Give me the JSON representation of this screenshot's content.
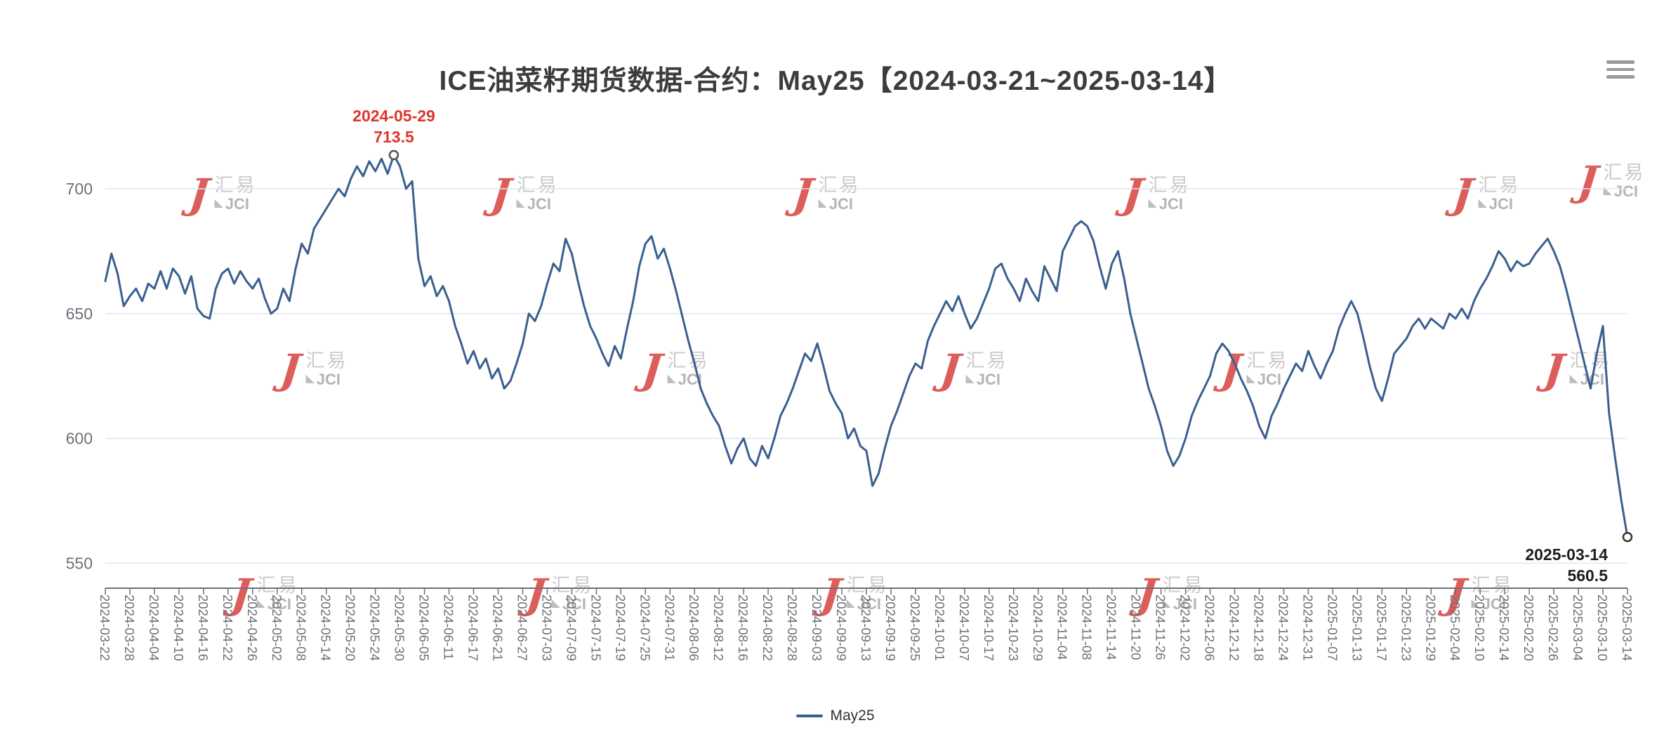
{
  "title": "ICE油菜籽期货数据-合约：May25【2024-03-21~2025-03-14】",
  "legend": {
    "items": [
      {
        "label": "May25",
        "color": "#3a5f8f"
      }
    ]
  },
  "watermark": {
    "logo_glyph": "J",
    "cn": "汇易",
    "en": "JCI"
  },
  "annotations": {
    "max": {
      "date": "2024-05-29",
      "value": "713.5"
    },
    "last": {
      "date": "2025-03-14",
      "value": "560.5"
    }
  },
  "colors": {
    "line": "#3a5f8f",
    "grid": "#e0e6f1",
    "axis": "#6e7079",
    "axis_label": "#6e7079",
    "max_annotation": "#e0352b",
    "last_annotation": "#1d1d1d",
    "watermark_red": "#d6433f",
    "watermark_gray": "#c2c2c2"
  },
  "chart_data": {
    "type": "line",
    "title": "ICE油菜籽期货数据-合约：May25【2024-03-21~2025-03-14】",
    "ylim": [
      540,
      725
    ],
    "yticks": [
      550,
      600,
      650,
      700
    ],
    "grid": true,
    "legend_position": "bottom",
    "points_per_label": 4,
    "x_tick_labels": [
      "2024-03-22",
      "2024-03-28",
      "2024-04-04",
      "2024-04-10",
      "2024-04-16",
      "2024-04-22",
      "2024-04-26",
      "2024-05-02",
      "2024-05-08",
      "2024-05-14",
      "2024-05-20",
      "2024-05-24",
      "2024-05-30",
      "2024-06-05",
      "2024-06-11",
      "2024-06-17",
      "2024-06-21",
      "2024-06-27",
      "2024-07-03",
      "2024-07-09",
      "2024-07-15",
      "2024-07-19",
      "2024-07-25",
      "2024-07-31",
      "2024-08-06",
      "2024-08-12",
      "2024-08-16",
      "2024-08-22",
      "2024-08-28",
      "2024-09-03",
      "2024-09-09",
      "2024-09-13",
      "2024-09-19",
      "2024-09-25",
      "2024-10-01",
      "2024-10-07",
      "2024-10-17",
      "2024-10-23",
      "2024-10-29",
      "2024-11-04",
      "2024-11-08",
      "2024-11-14",
      "2024-11-20",
      "2024-11-26",
      "2024-12-02",
      "2024-12-06",
      "2024-12-12",
      "2024-12-18",
      "2024-12-24",
      "2024-12-31",
      "2025-01-07",
      "2025-01-13",
      "2025-01-17",
      "2025-01-23",
      "2025-01-29",
      "2025-02-04",
      "2025-02-10",
      "2025-02-14",
      "2025-02-20",
      "2025-02-26",
      "2025-03-04",
      "2025-03-10",
      "2025-03-14"
    ],
    "series": [
      {
        "name": "May25",
        "color": "#3a5f8f",
        "values": [
          663,
          674,
          666,
          653,
          657,
          660,
          655,
          662,
          660,
          667,
          660,
          668,
          665,
          658,
          665,
          652,
          649,
          648,
          660,
          666,
          668,
          662,
          667,
          663,
          660,
          664,
          656,
          650,
          652,
          660,
          655,
          668,
          678,
          674,
          684,
          688,
          692,
          696,
          700,
          697,
          704,
          709,
          705,
          711,
          707,
          712,
          706,
          713.5,
          709,
          700,
          703,
          672,
          661,
          665,
          657,
          661,
          655,
          645,
          638,
          630,
          635,
          628,
          632,
          624,
          628,
          620,
          623,
          630,
          638,
          650,
          647,
          653,
          662,
          670,
          667,
          680,
          674,
          663,
          653,
          645,
          640,
          634,
          629,
          637,
          632,
          644,
          655,
          669,
          678,
          681,
          672,
          676,
          668,
          659,
          649,
          639,
          630,
          620,
          614,
          609,
          605,
          597,
          590,
          596,
          600,
          592,
          589,
          597,
          592,
          600,
          609,
          614,
          620,
          627,
          634,
          631,
          638,
          629,
          619,
          614,
          610,
          600,
          604,
          597,
          595,
          581,
          586,
          596,
          605,
          611,
          618,
          625,
          630,
          628,
          639,
          645,
          650,
          655,
          651,
          657,
          650,
          644,
          648,
          654,
          660,
          668,
          670,
          664,
          660,
          655,
          664,
          659,
          655,
          669,
          664,
          659,
          675,
          680,
          685,
          687,
          685,
          679,
          669,
          660,
          670,
          675,
          664,
          650,
          640,
          630,
          620,
          613,
          605,
          595,
          589,
          593,
          600,
          609,
          615,
          620,
          625,
          634,
          638,
          635,
          630,
          624,
          619,
          613,
          605,
          600,
          609,
          614,
          620,
          625,
          630,
          627,
          635,
          629,
          624,
          630,
          635,
          644,
          650,
          655,
          650,
          640,
          629,
          620,
          615,
          624,
          634,
          637,
          640,
          645,
          648,
          644,
          648,
          646,
          644,
          650,
          648,
          652,
          648,
          655,
          660,
          664,
          669,
          675,
          672,
          667,
          671,
          669,
          670,
          674,
          677,
          680,
          675,
          669,
          660,
          650,
          640,
          630,
          620,
          634,
          645,
          610,
          592,
          575,
          560.5
        ]
      }
    ],
    "max_point": {
      "date": "2024-05-29",
      "value": 713.5,
      "index": 47
    },
    "last_point": {
      "date": "2025-03-14",
      "value": 560.5,
      "index": 248
    }
  }
}
